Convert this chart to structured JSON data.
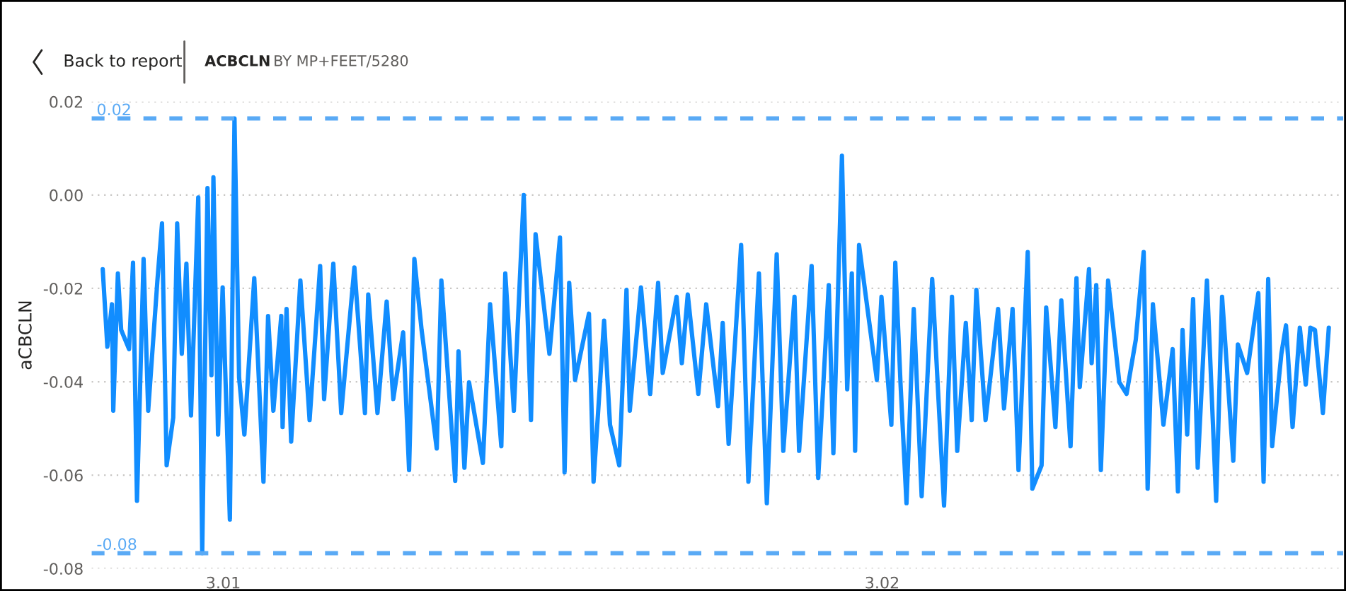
{
  "chart_data": {
    "type": "line",
    "title": "ACBCLN",
    "subtitle": "BY MP+FEET/5280",
    "ylabel": "aCBCLN",
    "annotations": [
      "Back to report"
    ],
    "series": [
      {
        "color": "#118dff",
        "x": [
          3.00817,
          3.00824,
          3.00831,
          3.00833,
          3.0084,
          3.00845,
          3.00857,
          3.00863,
          3.00869,
          3.00879,
          3.00886,
          3.009,
          3.00907,
          3.00914,
          3.00924,
          3.0093,
          3.00937,
          3.00944,
          3.00951,
          3.00962,
          3.00968,
          3.00976,
          3.00982,
          3.00985,
          3.00992,
          3.00999,
          3.0101,
          3.01017,
          3.01024,
          3.01032,
          3.01047,
          3.01061,
          3.01068,
          3.01076,
          3.01088,
          3.0109,
          3.01096,
          3.01103,
          3.01117,
          3.01131,
          3.01147,
          3.01153,
          3.01167,
          3.01179,
          3.01199,
          3.01215,
          3.0122,
          3.01234,
          3.01248,
          3.01258,
          3.01273,
          3.01282,
          3.0129,
          3.01301,
          3.01324,
          3.01331,
          3.01352,
          3.01357,
          3.01366,
          3.01373,
          3.01394,
          3.01405,
          3.01422,
          3.01428,
          3.01441,
          3.01456,
          3.01467,
          3.01474,
          3.01495,
          3.01511,
          3.01518,
          3.01525,
          3.01534,
          3.01555,
          3.01562,
          3.01578,
          3.01587,
          3.01601,
          3.01612,
          3.01617,
          3.01634,
          3.01648,
          3.0166,
          3.01667,
          3.01688,
          3.01696,
          3.01705,
          3.01721,
          3.01733,
          3.01751,
          3.01758,
          3.01767,
          3.01786,
          3.01797,
          3.01813,
          3.01825,
          3.0184,
          3.0185,
          3.01867,
          3.01874,
          3.01893,
          3.01903,
          3.01919,
          3.01926,
          3.01939,
          3.01947,
          3.01954,
          3.01959,
          3.01965,
          3.01992,
          3.01999,
          3.02014,
          3.0202,
          3.02028,
          3.02037,
          3.02048,
          3.0206,
          3.02076,
          3.02094,
          3.02106,
          3.02114,
          3.02127,
          3.02136,
          3.02143,
          3.02157,
          3.02176,
          3.02185,
          3.02198,
          3.02207,
          3.02221,
          3.02228,
          3.02242,
          3.02249,
          3.02263,
          3.02272,
          3.02286,
          3.02295,
          3.023,
          3.02314,
          3.02318,
          3.02325,
          3.02332,
          3.02343,
          3.0236,
          3.02371,
          3.02385,
          3.02397,
          3.02403,
          3.02411,
          3.02427,
          3.02441,
          3.02449,
          3.02456,
          3.02463,
          3.02472,
          3.02479,
          3.02493,
          3.02507,
          3.02516,
          3.02533,
          3.0254,
          3.02554,
          3.02571,
          3.02579,
          3.02586,
          3.02592,
          3.02606,
          3.02613,
          3.02623,
          3.02634,
          3.02643,
          3.0265,
          3.02657,
          3.02669,
          3.02678
        ],
        "values": [
          -0.0159,
          -0.0325,
          -0.0234,
          -0.0462,
          -0.0168,
          -0.0289,
          -0.033,
          -0.0145,
          -0.0655,
          -0.0137,
          -0.0462,
          -0.0183,
          -0.0061,
          -0.0579,
          -0.0477,
          -0.0061,
          -0.034,
          -0.0147,
          -0.0472,
          -0.0005,
          -0.0767,
          0.0015,
          -0.0386,
          0.0038,
          -0.0513,
          -0.0198,
          -0.0695,
          0.0164,
          -0.0391,
          -0.0513,
          -0.0178,
          -0.0614,
          -0.0259,
          -0.0462,
          -0.0259,
          -0.0497,
          -0.0244,
          -0.0528,
          -0.0183,
          -0.0482,
          -0.0152,
          -0.0437,
          -0.0147,
          -0.0467,
          -0.0155,
          -0.0467,
          -0.0213,
          -0.0467,
          -0.0228,
          -0.0437,
          -0.0294,
          -0.0589,
          -0.0137,
          -0.0289,
          -0.0543,
          -0.0183,
          -0.0612,
          -0.0335,
          -0.0584,
          -0.0401,
          -0.0574,
          -0.0234,
          -0.0538,
          -0.0168,
          -0.0462,
          0.0,
          -0.0482,
          -0.0084,
          -0.034,
          -0.0091,
          -0.0594,
          -0.0188,
          -0.0396,
          -0.0254,
          -0.0614,
          -0.0269,
          -0.0492,
          -0.0579,
          -0.0203,
          -0.0462,
          -0.0198,
          -0.0426,
          -0.0188,
          -0.0381,
          -0.0218,
          -0.036,
          -0.0213,
          -0.0426,
          -0.0234,
          -0.0452,
          -0.0274,
          -0.0533,
          -0.0107,
          -0.0614,
          -0.0168,
          -0.066,
          -0.0127,
          -0.0548,
          -0.0218,
          -0.0548,
          -0.0152,
          -0.0606,
          -0.0193,
          -0.0553,
          0.0084,
          -0.0416,
          -0.0168,
          -0.0548,
          -0.0107,
          -0.0396,
          -0.0218,
          -0.0492,
          -0.0145,
          -0.0406,
          -0.066,
          -0.0244,
          -0.0645,
          -0.018,
          -0.0665,
          -0.0218,
          -0.0548,
          -0.0274,
          -0.0482,
          -0.0203,
          -0.0482,
          -0.0244,
          -0.0457,
          -0.0244,
          -0.0589,
          -0.0122,
          -0.0629,
          -0.0579,
          -0.0241,
          -0.0497,
          -0.0226,
          -0.0538,
          -0.0178,
          -0.0411,
          -0.0159,
          -0.036,
          -0.0193,
          -0.0589,
          -0.0183,
          -0.0401,
          -0.0426,
          -0.031,
          -0.0122,
          -0.0629,
          -0.0234,
          -0.0492,
          -0.033,
          -0.0635,
          -0.0289,
          -0.0513,
          -0.0223,
          -0.0584,
          -0.0183,
          -0.0655,
          -0.0218,
          -0.0569,
          -0.032,
          -0.0381,
          -0.021,
          -0.0614,
          -0.018,
          -0.0538,
          -0.034,
          -0.0279,
          -0.0497,
          -0.0284,
          -0.0406,
          -0.0284,
          -0.0289,
          -0.0467,
          -0.0284
        ]
      }
    ],
    "xlim": [
      3.008,
      3.027
    ],
    "xticks": [
      3.01,
      3.02
    ],
    "ylim": [
      -0.08,
      0.02
    ],
    "yticks": [
      0.02,
      {
        "value": 0,
        "label": "0.00"
      },
      -0.02,
      -0.04,
      -0.06,
      -0.08
    ],
    "ref_lines": [
      {
        "axis": "y",
        "value": 0.0164,
        "label": "0.02",
        "color": "#5aaaf5",
        "line_style": "dashed"
      },
      {
        "axis": "y",
        "value": -0.0767,
        "label": "-0.08",
        "color": "#5aaaf5",
        "line_style": "dashed"
      }
    ],
    "grid": "y",
    "line_style": "solid",
    "marker": "none"
  }
}
